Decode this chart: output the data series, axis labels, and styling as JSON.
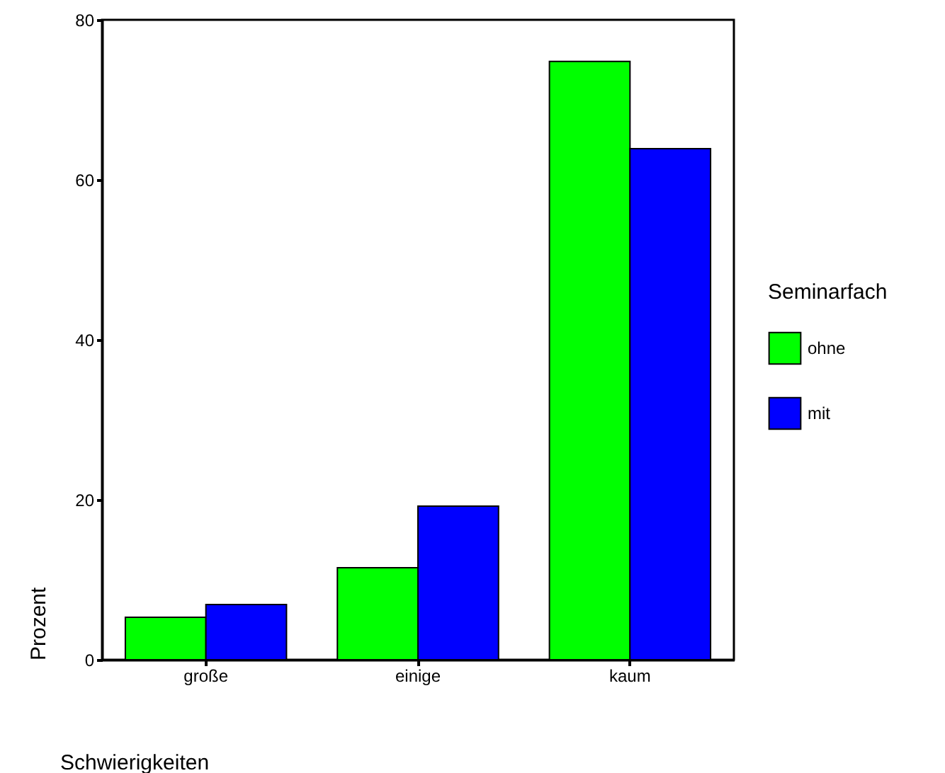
{
  "chart_data": {
    "type": "bar",
    "xlabel": "Schwierigkeiten",
    "ylabel": "Prozent",
    "legend_title": "Seminarfach",
    "categories": [
      "große",
      "einige",
      "kaum"
    ],
    "series": [
      {
        "name": "ohne",
        "color": "#00ff00",
        "values": [
          5.3,
          11.5,
          74.8
        ]
      },
      {
        "name": "mit",
        "color": "#0000ff",
        "values": [
          6.9,
          19.2,
          63.9
        ]
      }
    ],
    "ylim": [
      0,
      80
    ],
    "yticks": [
      0,
      20,
      40,
      60,
      80
    ],
    "grid": false,
    "legend": "right"
  }
}
